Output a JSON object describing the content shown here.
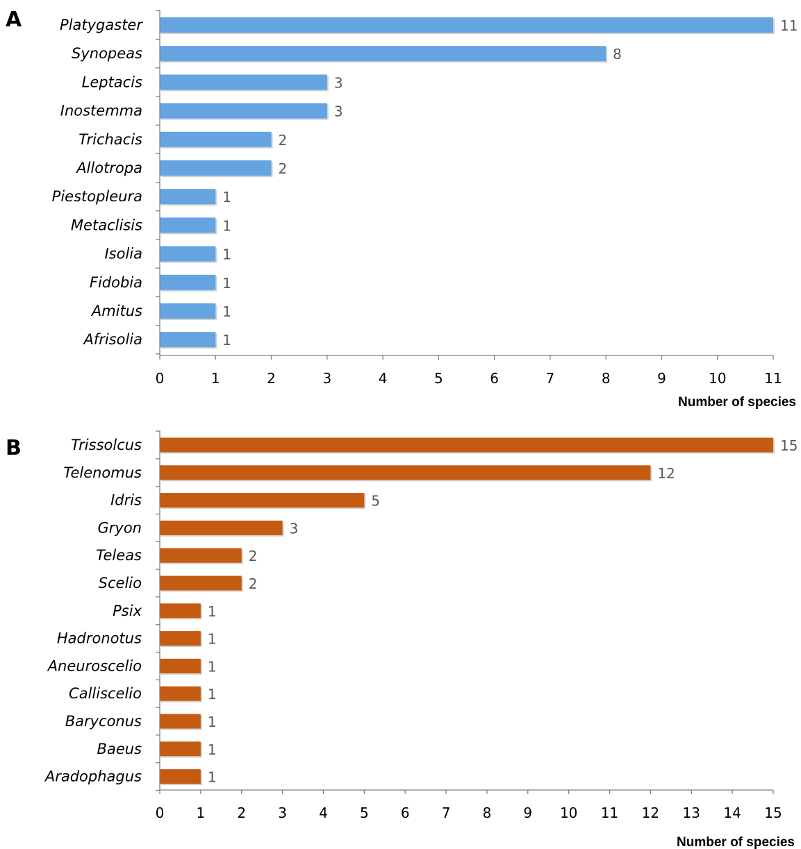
{
  "chart_data": [
    {
      "type": "bar",
      "orientation": "horizontal",
      "panel_label": "A",
      "categories": [
        "Platygaster",
        "Synopeas",
        "Leptacis",
        "Inostemma",
        "Trichacis",
        "Allotropa",
        "Piestopleura",
        "Metaclisis",
        "Isolia",
        "Fidobia",
        "Amitus",
        "Afrisolia"
      ],
      "values": [
        11,
        8,
        3,
        3,
        2,
        2,
        1,
        1,
        1,
        1,
        1,
        1
      ],
      "xlabel": "Number of species",
      "ylabel": "",
      "xlim": [
        0,
        11
      ],
      "xticks": [
        0,
        1,
        2,
        3,
        4,
        5,
        6,
        7,
        8,
        9,
        10,
        11
      ],
      "data_labels": true,
      "grid": false,
      "color": "#64a5e1"
    },
    {
      "type": "bar",
      "orientation": "horizontal",
      "panel_label": "B",
      "categories": [
        "Trissolcus",
        "Telenomus",
        "Idris",
        "Gryon",
        "Teleas",
        "Scelio",
        "Psix",
        "Hadronotus",
        "Aneuroscelio",
        "Calliscelio",
        "Baryconus",
        "Baeus",
        "Aradophagus"
      ],
      "values": [
        15,
        12,
        5,
        3,
        2,
        2,
        1,
        1,
        1,
        1,
        1,
        1,
        1
      ],
      "xlabel": "Number of species",
      "ylabel": "",
      "xlim": [
        0,
        15
      ],
      "xticks": [
        0,
        1,
        2,
        3,
        4,
        5,
        6,
        7,
        8,
        9,
        10,
        11,
        12,
        13,
        14,
        15
      ],
      "data_labels": true,
      "grid": false,
      "color": "#c55a11"
    }
  ]
}
